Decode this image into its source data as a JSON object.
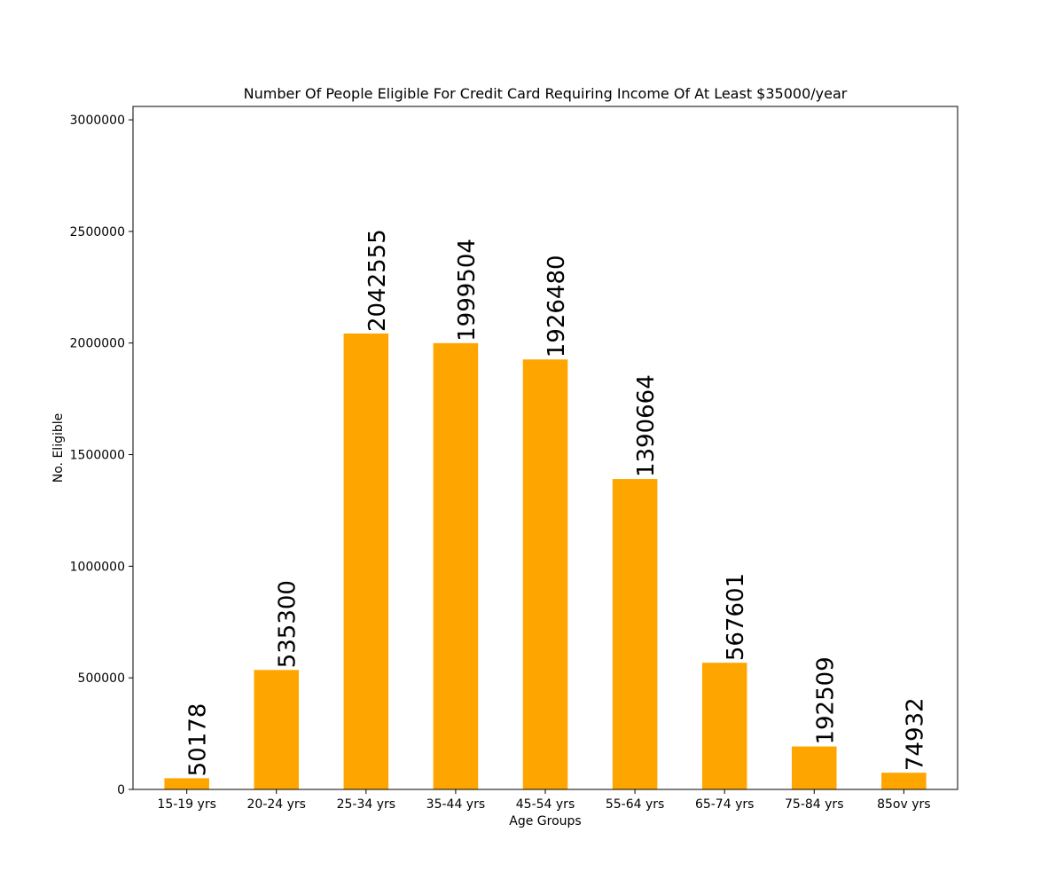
{
  "chart_data": {
    "type": "bar",
    "title": "Number Of People Eligible For Credit Card Requiring Income Of At Least $35000/year",
    "xlabel": "Age Groups",
    "ylabel": "No. Eligible",
    "categories": [
      "15-19 yrs",
      "20-24 yrs",
      "25-34 yrs",
      "35-44 yrs",
      "45-54 yrs",
      "55-64 yrs",
      "65-74 yrs",
      "75-84 yrs",
      "85ov yrs"
    ],
    "values": [
      50178,
      535300,
      2042555,
      1999504,
      1926480,
      1390664,
      567601,
      192509,
      74932
    ],
    "ylim": [
      0,
      3060000
    ],
    "yticks": [
      0,
      500000,
      1000000,
      1500000,
      2000000,
      2500000,
      3000000
    ],
    "ytick_labels": [
      "0",
      "500000",
      "1000000",
      "1500000",
      "2000000",
      "2500000",
      "3000000"
    ],
    "bar_color": "#ffa500",
    "grid": false,
    "legend": "none"
  }
}
